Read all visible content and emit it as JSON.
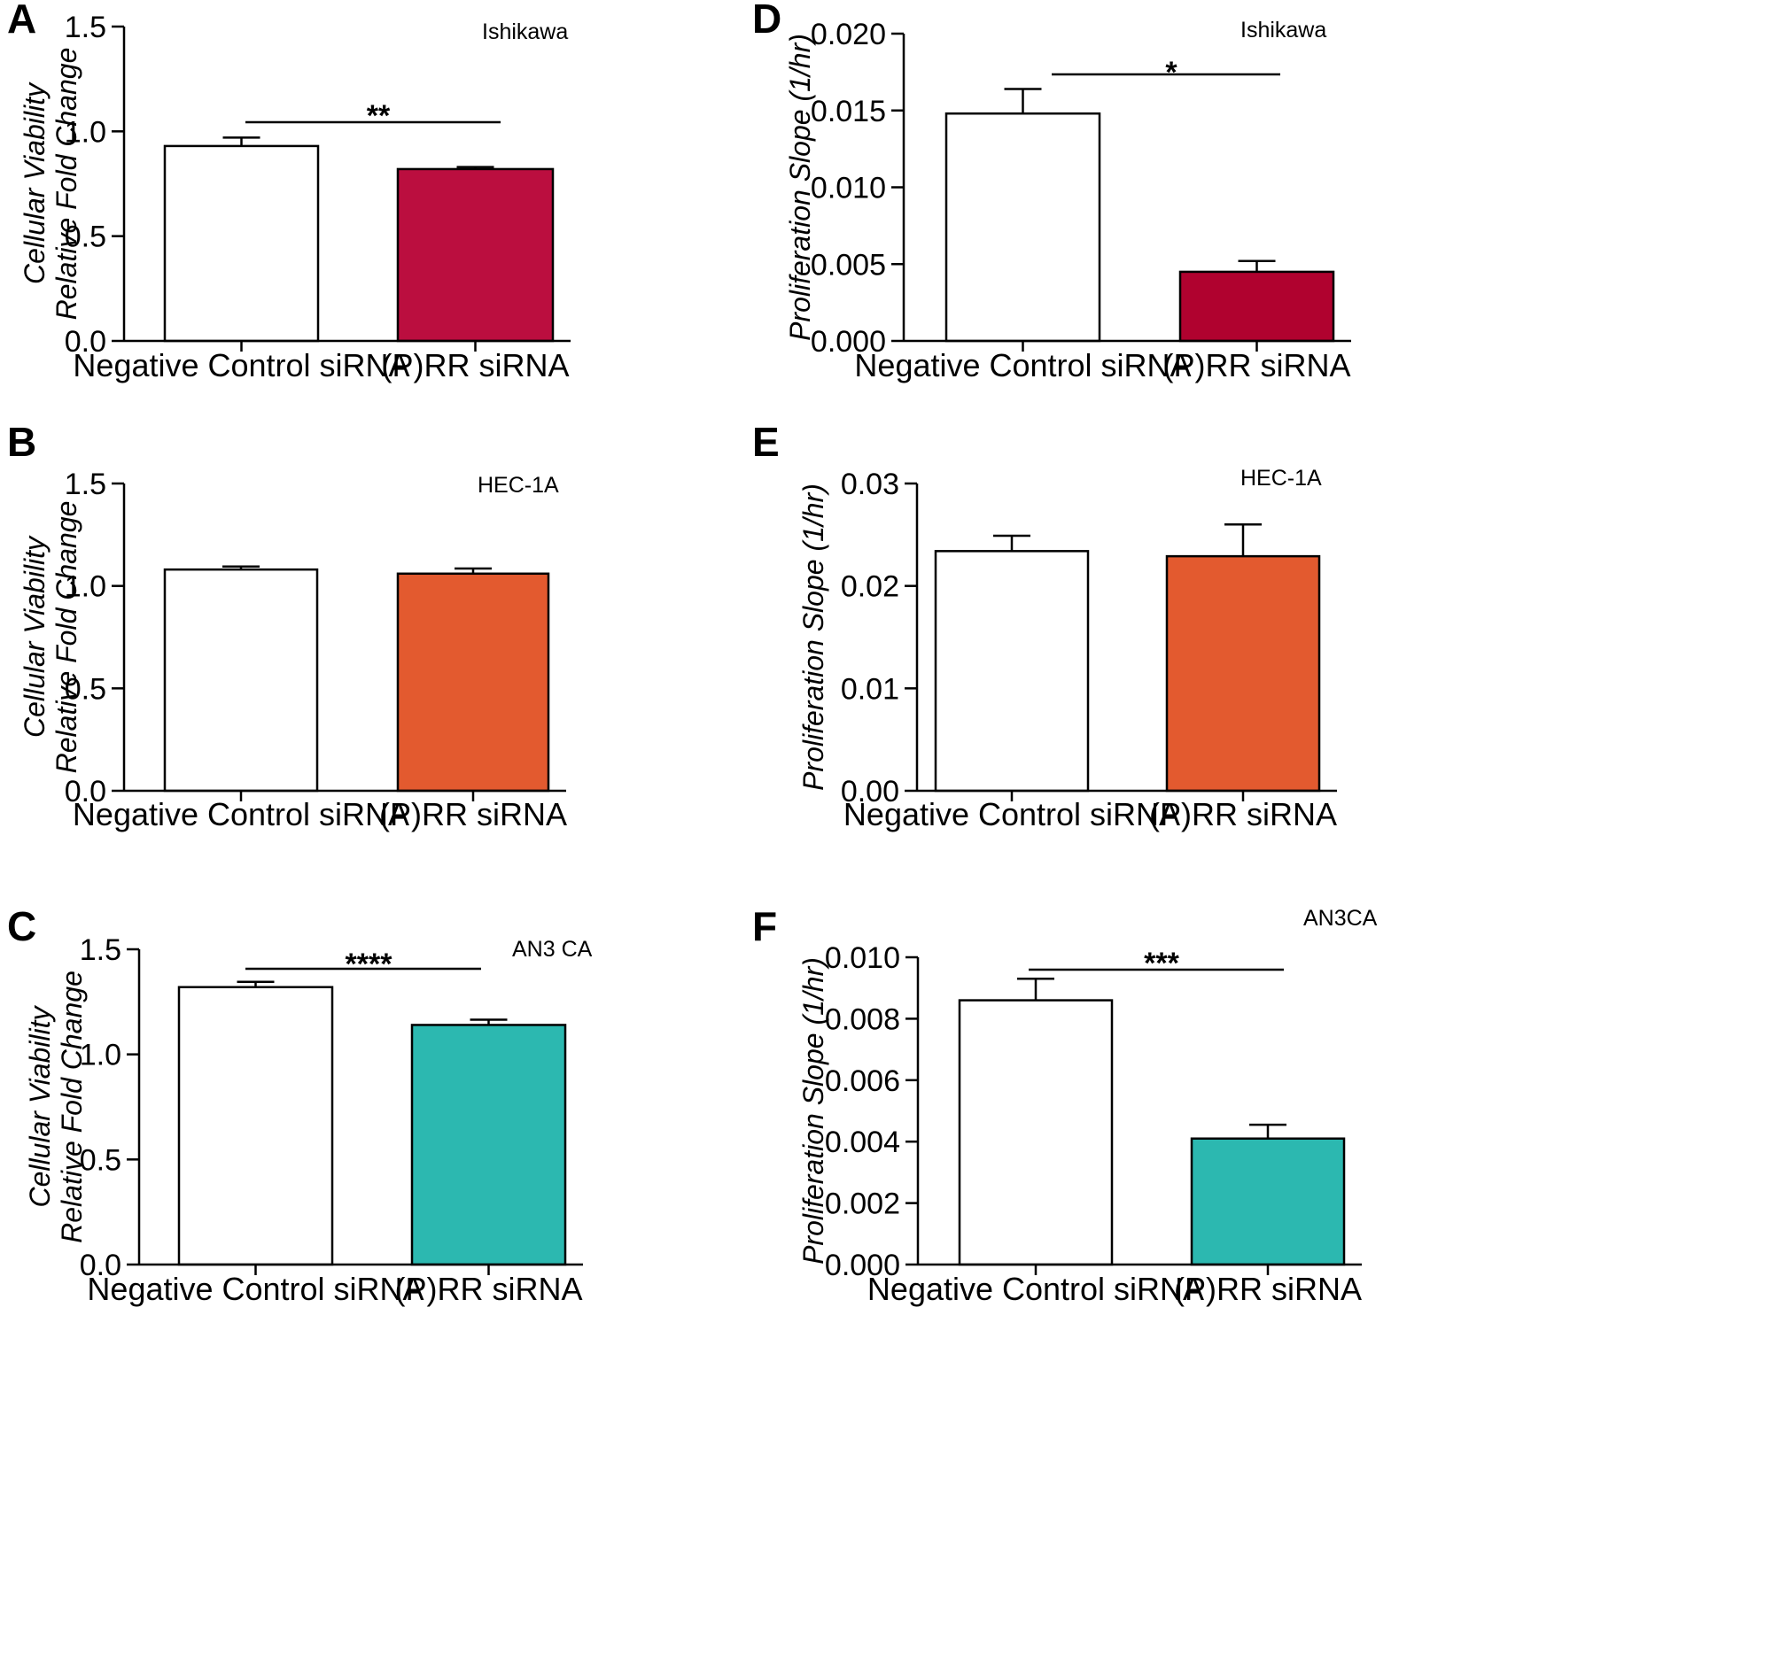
{
  "chart_data": [
    {
      "panel": "A",
      "type": "bar",
      "title": "Ishikawa",
      "ylabel_lines": [
        "Cellular Viability",
        "Relative Fold Change"
      ],
      "categories": [
        "Negative Control siRNA",
        "(P)RR siRNA"
      ],
      "values": [
        0.93,
        0.82
      ],
      "errors": [
        0.04,
        0.01
      ],
      "bar_colors": [
        "#ffffff",
        "#bb0e3f"
      ],
      "ylim": [
        0,
        1.5
      ],
      "yticks": [
        "0.0",
        "0.5",
        "1.0",
        "1.5"
      ],
      "significance": "**"
    },
    {
      "panel": "B",
      "type": "bar",
      "title": "HEC-1A",
      "ylabel_lines": [
        "Cellular Viability",
        "Relative Fold Change"
      ],
      "categories": [
        "Negative Control siRNA",
        "(P)RR siRNA"
      ],
      "values": [
        1.08,
        1.06
      ],
      "errors": [
        0.015,
        0.025
      ],
      "bar_colors": [
        "#ffffff",
        "#e35a2f"
      ],
      "ylim": [
        0,
        1.5
      ],
      "yticks": [
        "0.0",
        "0.5",
        "1.0",
        "1.5"
      ],
      "significance": ""
    },
    {
      "panel": "C",
      "type": "bar",
      "title": "AN3 CA",
      "ylabel_lines": [
        "Cellular Viability",
        "Relative Fold Change"
      ],
      "categories": [
        "Negative Control siRNA",
        "(P)RR siRNA"
      ],
      "values": [
        1.32,
        1.14
      ],
      "errors": [
        0.025,
        0.025
      ],
      "bar_colors": [
        "#ffffff",
        "#2cb8b0"
      ],
      "ylim": [
        0,
        1.5
      ],
      "yticks": [
        "0.0",
        "0.5",
        "1.0",
        "1.5"
      ],
      "significance": "****"
    },
    {
      "panel": "D",
      "type": "bar",
      "title": "Ishikawa",
      "ylabel_lines": [
        "Proliferation Slope (1/hr)"
      ],
      "categories": [
        "Negative Control siRNA",
        "(P)RR siRNA"
      ],
      "values": [
        0.0148,
        0.0045
      ],
      "errors": [
        0.0016,
        0.0007
      ],
      "bar_colors": [
        "#ffffff",
        "#b0022f"
      ],
      "ylim": [
        0,
        0.02
      ],
      "yticks": [
        "0.000",
        "0.005",
        "0.010",
        "0.015",
        "0.020"
      ],
      "significance": "*"
    },
    {
      "panel": "E",
      "type": "bar",
      "title": "HEC-1A",
      "ylabel_lines": [
        "Proliferation Slope (1/hr)"
      ],
      "categories": [
        "Negative Control siRNA",
        "(P)RR siRNA"
      ],
      "values": [
        0.0234,
        0.0229
      ],
      "errors": [
        0.0015,
        0.0031
      ],
      "bar_colors": [
        "#ffffff",
        "#e35a2f"
      ],
      "ylim": [
        0,
        0.03
      ],
      "yticks": [
        "0.00",
        "0.01",
        "0.02",
        "0.03"
      ],
      "significance": ""
    },
    {
      "panel": "F",
      "type": "bar",
      "title": "AN3CA",
      "ylabel_lines": [
        "Proliferation Slope (1/hr)"
      ],
      "categories": [
        "Negative Control siRNA",
        "(P)RR siRNA"
      ],
      "values": [
        0.0086,
        0.0041
      ],
      "errors": [
        0.0007,
        0.00045
      ],
      "bar_colors": [
        "#ffffff",
        "#2cb8b0"
      ],
      "ylim": [
        0,
        0.01
      ],
      "yticks": [
        "0.000",
        "0.002",
        "0.004",
        "0.006",
        "0.008",
        "0.010"
      ],
      "significance": "***"
    }
  ]
}
